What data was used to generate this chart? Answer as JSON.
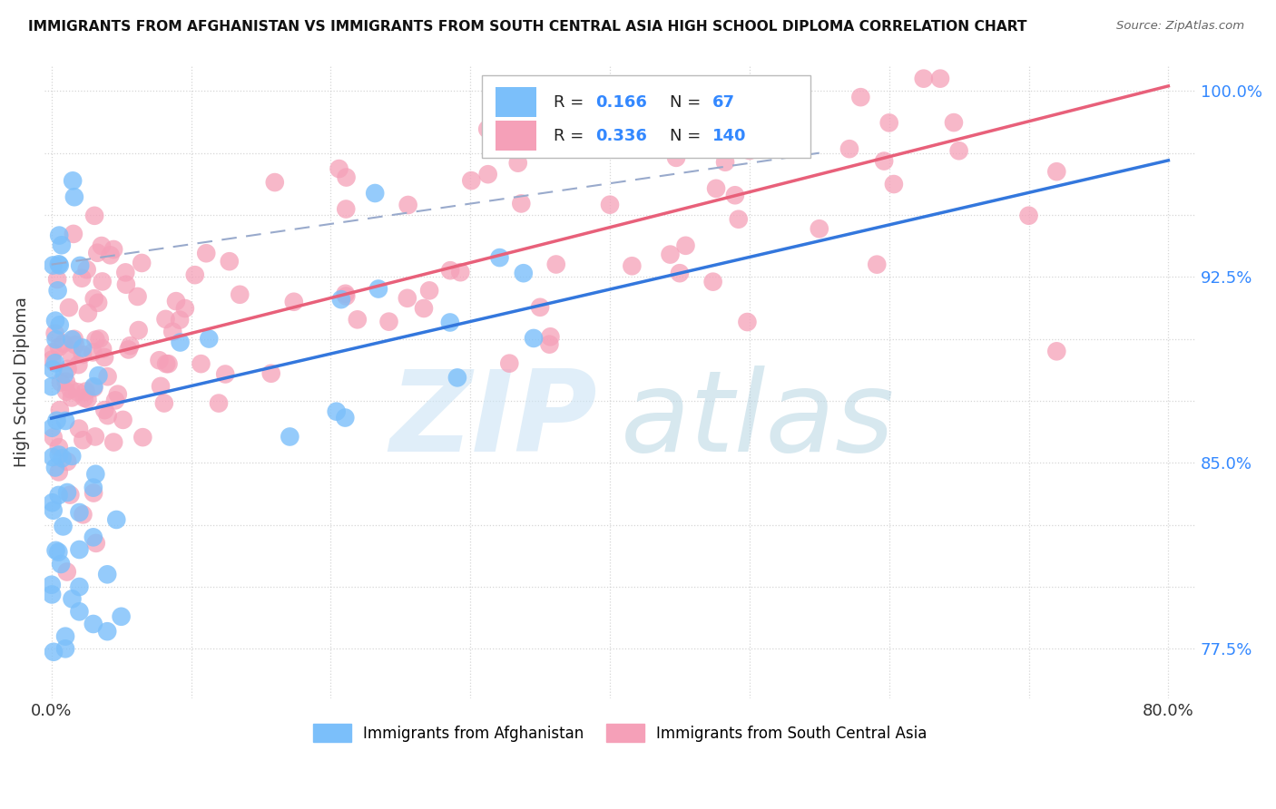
{
  "title": "IMMIGRANTS FROM AFGHANISTAN VS IMMIGRANTS FROM SOUTH CENTRAL ASIA HIGH SCHOOL DIPLOMA CORRELATION CHART",
  "source": "Source: ZipAtlas.com",
  "ylabel": "High School Diploma",
  "xlim": [
    -0.005,
    0.82
  ],
  "ylim": [
    0.755,
    1.01
  ],
  "afghanistan_color": "#7bbffa",
  "south_asia_color": "#f5a0b8",
  "afghanistan_R": 0.166,
  "afghanistan_N": 67,
  "south_asia_R": 0.336,
  "south_asia_N": 140,
  "legend_label_1": "Immigrants from Afghanistan",
  "legend_label_2": "Immigrants from South Central Asia",
  "watermark_zip": "ZIP",
  "watermark_atlas": "atlas",
  "ytick_pos": [
    0.775,
    0.8,
    0.825,
    0.85,
    0.875,
    0.9,
    0.925,
    0.95,
    0.975,
    1.0
  ],
  "ytick_labels": [
    "77.5%",
    "",
    "",
    "85.0%",
    "",
    "",
    "92.5%",
    "",
    "",
    "100.0%"
  ],
  "xtick_pos": [
    0.0,
    0.1,
    0.2,
    0.3,
    0.4,
    0.5,
    0.6,
    0.7,
    0.8
  ],
  "xtick_labels": [
    "0.0%",
    "",
    "",
    "",
    "",
    "",
    "",
    "",
    "80.0%"
  ],
  "afg_trend_x": [
    0.0,
    0.8
  ],
  "afg_trend_y": [
    0.868,
    0.972
  ],
  "sa_trend_x": [
    0.0,
    0.8
  ],
  "sa_trend_y": [
    0.888,
    1.002
  ],
  "dash_trend_x": [
    0.0,
    0.55
  ],
  "dash_trend_y": [
    0.93,
    0.975
  ]
}
